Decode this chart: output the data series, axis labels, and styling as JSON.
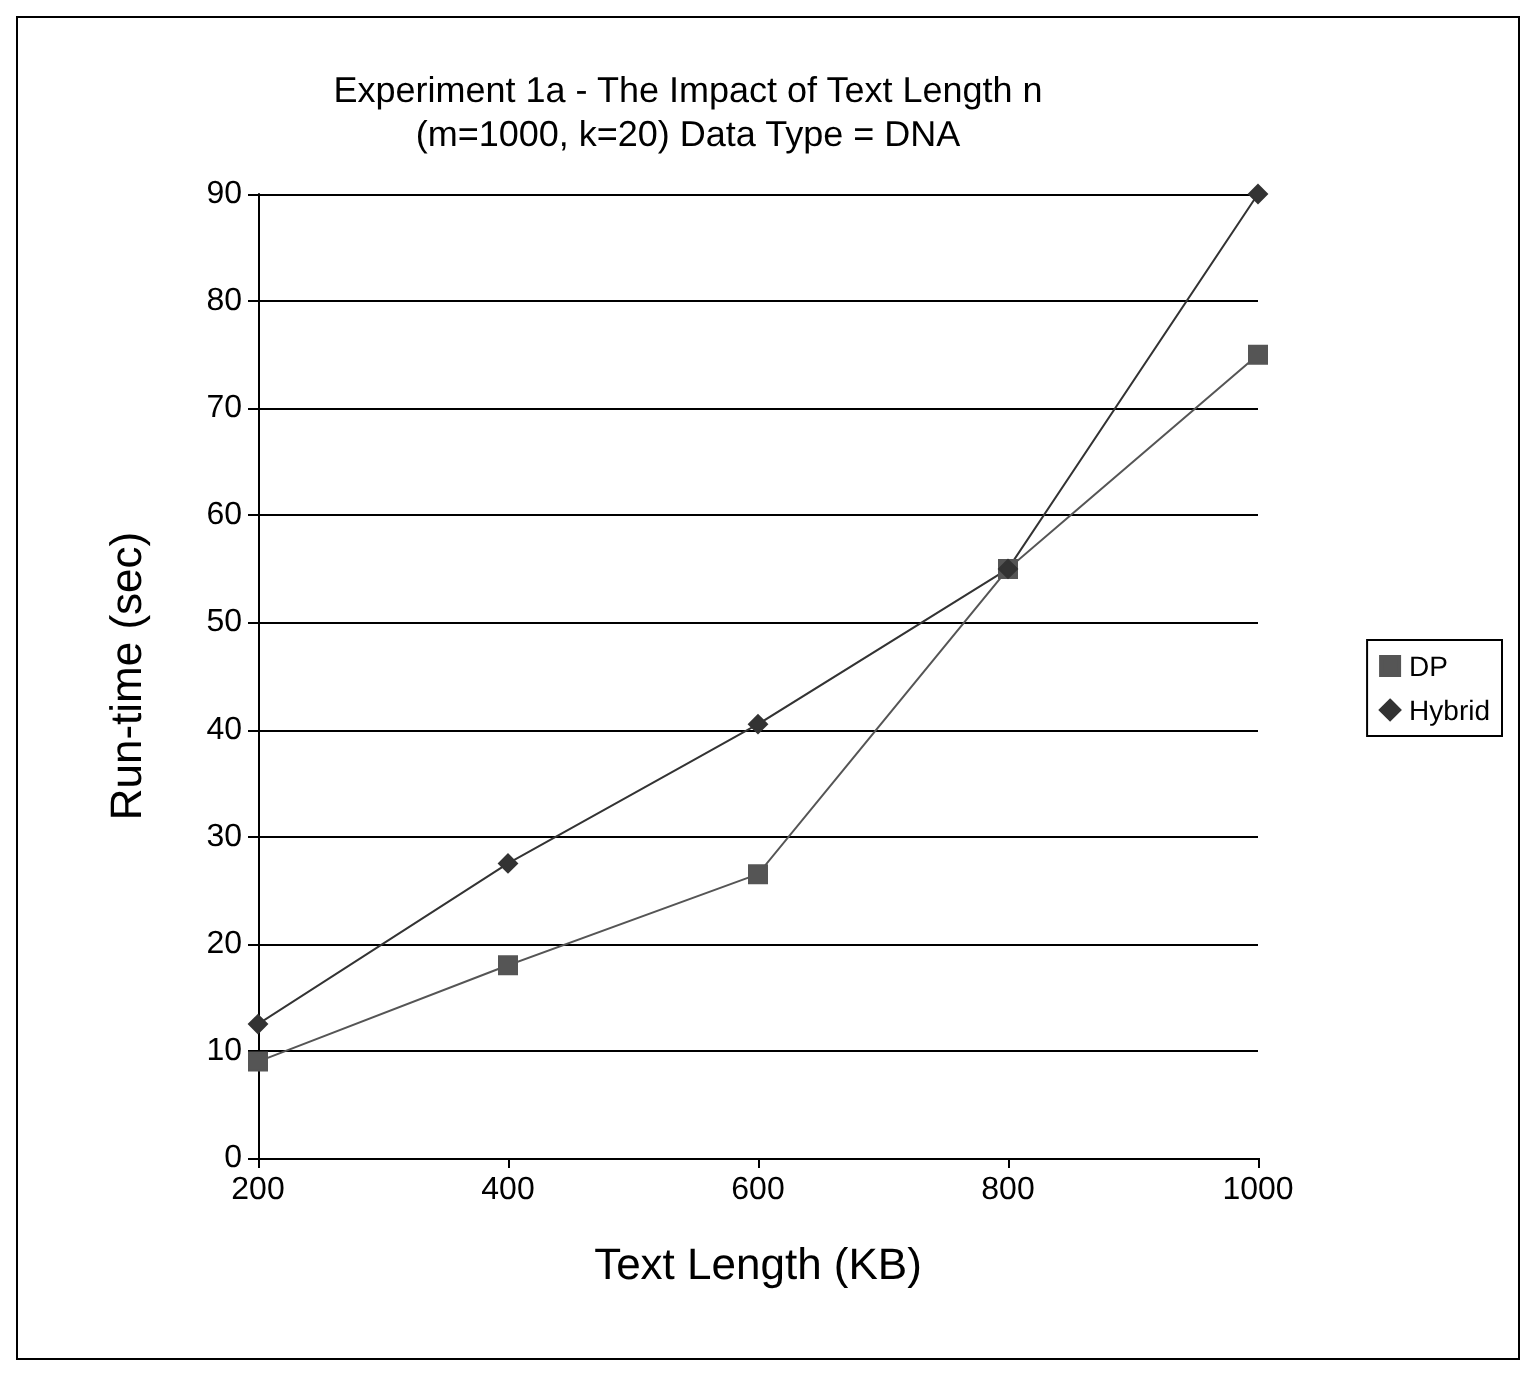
{
  "chart_data": {
    "type": "line",
    "title": "Experiment 1a - The Impact of Text Length n\n(m=1000, k=20) Data Type = DNA",
    "xlabel": "Text Length (KB)",
    "ylabel": "Run-time (sec)",
    "x": [
      200,
      400,
      600,
      800,
      1000
    ],
    "series": [
      {
        "name": "DP",
        "color": "#555555",
        "marker": "square",
        "values": [
          9,
          18,
          26.5,
          55,
          75
        ]
      },
      {
        "name": "Hybrid",
        "color": "#333333",
        "marker": "diamond",
        "values": [
          12.5,
          27.5,
          40.5,
          55,
          90
        ]
      }
    ],
    "xlim": [
      200,
      1000
    ],
    "xticks": [
      200,
      400,
      600,
      800,
      1000
    ],
    "ylim": [
      0,
      90
    ],
    "yticks": [
      0,
      10,
      20,
      30,
      40,
      50,
      60,
      70,
      80,
      90
    ],
    "grid": "y",
    "legend": "right",
    "line_style": "solid"
  }
}
